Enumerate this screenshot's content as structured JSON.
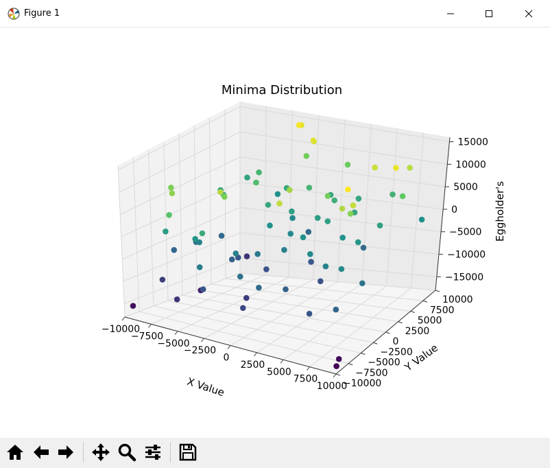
{
  "window": {
    "title": "Figure 1",
    "icons": {
      "app": "matplotlib-logo-icon",
      "minimize": "minimize-icon",
      "maximize": "maximize-icon",
      "close": "close-icon"
    }
  },
  "toolbar": {
    "buttons": [
      {
        "name": "home-button",
        "icon": "home-icon"
      },
      {
        "name": "back-button",
        "icon": "arrow-left-icon"
      },
      {
        "name": "forward-button",
        "icon": "arrow-right-icon"
      },
      {
        "name": "pan-button",
        "icon": "move-icon"
      },
      {
        "name": "zoom-button",
        "icon": "magnifier-icon"
      },
      {
        "name": "configure-subplots-button",
        "icon": "sliders-icon"
      },
      {
        "name": "save-button",
        "icon": "floppy-disk-icon"
      }
    ]
  },
  "chart_data": {
    "type": "scatter",
    "projection": "3d",
    "title": "Minima Distribution",
    "xlabel": "X Value",
    "ylabel": "Y Value",
    "zlabel": "Eggholder's",
    "xlim": [
      -10000,
      10000
    ],
    "ylim": [
      -10000,
      10000
    ],
    "zlim": [
      -18000,
      16000
    ],
    "xticks": [
      "−10000",
      "−7500",
      "−5000",
      "−2500",
      "0",
      "2500",
      "5000",
      "7500",
      "10000"
    ],
    "yticks": [
      "−10000",
      "−7500",
      "−5000",
      "−2500",
      "0",
      "2500",
      "5000",
      "7500",
      "10000"
    ],
    "zticks": [
      "−15000",
      "−10000",
      "−5000",
      "0",
      "5000",
      "10000",
      "15000"
    ],
    "grid": true,
    "colormap": "viridis",
    "colormap_stops": [
      "#440154",
      "#3b528b",
      "#21918c",
      "#5ec962",
      "#fde725"
    ],
    "points": [
      {
        "x": -9500,
        "y": -9400,
        "z": -15500
      },
      {
        "x": -5500,
        "y": -9000,
        "z": -12000
      },
      {
        "x": -8500,
        "y": -6000,
        "z": -11000
      },
      {
        "x": -6500,
        "y": -3000,
        "z": -14000
      },
      {
        "x": -9000,
        "y": -3000,
        "z": -6500
      },
      {
        "x": -3000,
        "y": -9000,
        "z": -8500
      },
      {
        "x": 1000,
        "y": -9500,
        "z": -10000
      },
      {
        "x": 3500,
        "y": -6500,
        "z": -7000
      },
      {
        "x": 7000,
        "y": -9000,
        "z": -8500
      },
      {
        "x": 9500,
        "y": -9000,
        "z": -6500
      },
      {
        "x": -7000,
        "y": 6000,
        "z": -12000
      },
      {
        "x": -4000,
        "y": -2000,
        "z": -7000
      },
      {
        "x": -6000,
        "y": -4000,
        "z": -3000
      },
      {
        "x": -8000,
        "y": -1000,
        "z": -5500
      },
      {
        "x": -2000,
        "y": -5000,
        "z": -3000
      },
      {
        "x": -9000,
        "y": 5000,
        "z": 1500
      },
      {
        "x": -7000,
        "y": 2000,
        "z": 3000
      },
      {
        "x": -7500,
        "y": -7000,
        "z": 500
      },
      {
        "x": -5000,
        "y": -6500,
        "z": -300
      },
      {
        "x": -3500,
        "y": -8000,
        "z": 2500
      },
      {
        "x": -6000,
        "y": -9000,
        "z": 6000
      },
      {
        "x": -3000,
        "y": -9500,
        "z": -3500
      },
      {
        "x": 0,
        "y": -8000,
        "z": -5000
      },
      {
        "x": 2000,
        "y": -8500,
        "z": -6000
      },
      {
        "x": -1000,
        "y": -3000,
        "z": -4000
      },
      {
        "x": 1000,
        "y": -2000,
        "z": -3000
      },
      {
        "x": 4000,
        "y": -3000,
        "z": -2000
      },
      {
        "x": 6000,
        "y": -4000,
        "z": -3000
      },
      {
        "x": 8000,
        "y": -5000,
        "z": -2000
      },
      {
        "x": 9500,
        "y": -4000,
        "z": -5000
      },
      {
        "x": -2000,
        "y": 1000,
        "z": -1000
      },
      {
        "x": 0,
        "y": 1000,
        "z": -2000
      },
      {
        "x": 2000,
        "y": -500,
        "z": -1000
      },
      {
        "x": -3000,
        "y": 2500,
        "z": 2000
      },
      {
        "x": -1000,
        "y": 3000,
        "z": 1000
      },
      {
        "x": 1500,
        "y": 3000,
        "z": 500
      },
      {
        "x": 3000,
        "y": 2000,
        "z": 1000
      },
      {
        "x": 5000,
        "y": 1000,
        "z": -1000
      },
      {
        "x": 7000,
        "y": 0,
        "z": -500
      },
      {
        "x": -5000,
        "y": 4000,
        "z": 5000
      },
      {
        "x": -1000,
        "y": 6000,
        "z": 4000
      },
      {
        "x": 2000,
        "y": 5000,
        "z": 3000
      },
      {
        "x": 4500,
        "y": 4000,
        "z": 2000
      },
      {
        "x": 7500,
        "y": 3000,
        "z": 1000
      },
      {
        "x": -4000,
        "y": 7500,
        "z": 2000
      },
      {
        "x": 0,
        "y": 8000,
        "z": 1500
      },
      {
        "x": 3000,
        "y": 7500,
        "z": 2000
      },
      {
        "x": 6000,
        "y": 8000,
        "z": 3500
      },
      {
        "x": 9000,
        "y": 8000,
        "z": -1000
      },
      {
        "x": 9000,
        "y": 4000,
        "z": 7000
      },
      {
        "x": -7000,
        "y": 8000,
        "z": 4000
      },
      {
        "x": -3000,
        "y": 9000,
        "z": 8000
      },
      {
        "x": 1000,
        "y": 9000,
        "z": 7500
      },
      {
        "x": -2000,
        "y": 5000,
        "z": -2000
      },
      {
        "x": -6000,
        "y": 9500,
        "z": -1000
      },
      {
        "x": -9000,
        "y": 9500,
        "z": 1500
      },
      {
        "x": -7500,
        "y": 2500,
        "z": -6000
      },
      {
        "x": -4500,
        "y": 0,
        "z": -8000
      },
      {
        "x": -1500,
        "y": -500,
        "z": -9000
      },
      {
        "x": 1500,
        "y": 2000,
        "z": -8000
      },
      {
        "x": 5000,
        "y": 5000,
        "z": -6000
      },
      {
        "x": -500,
        "y": -6000,
        "z": -11000
      },
      {
        "x": 4000,
        "y": -1000,
        "z": -9000
      },
      {
        "x": -1500,
        "y": 7000,
        "z": -6000
      },
      {
        "x": -8000,
        "y": -5000,
        "z": 8500
      },
      {
        "x": -6500,
        "y": -7500,
        "z": 9500
      },
      {
        "x": -3000,
        "y": -5000,
        "z": 8500
      },
      {
        "x": -2000,
        "y": -7500,
        "z": 11500
      },
      {
        "x": 4000,
        "y": -8500,
        "z": 12000
      },
      {
        "x": 2000,
        "y": -3000,
        "z": 10500
      },
      {
        "x": 8500,
        "y": -6000,
        "z": 11000
      },
      {
        "x": 8500,
        "y": -4500,
        "z": 9000
      },
      {
        "x": 9000,
        "y": -6000,
        "z": 15000
      },
      {
        "x": 9500,
        "y": -6000,
        "z": 12000
      },
      {
        "x": -1000,
        "y": 6500,
        "z": 13500
      },
      {
        "x": -3500,
        "y": 8500,
        "z": 14500
      },
      {
        "x": -1500,
        "y": 7500,
        "z": 12500
      },
      {
        "x": 6500,
        "y": 3500,
        "z": 12500
      },
      {
        "x": 8500,
        "y": 6000,
        "z": 11500
      },
      {
        "x": 4000,
        "y": 0,
        "z": 8000
      },
      {
        "x": 9000,
        "y": 2500,
        "z": 14000
      },
      {
        "x": -4000,
        "y": 9800,
        "z": 13500
      },
      {
        "x": 9800,
        "y": -9000,
        "z": -16000
      },
      {
        "x": 9800,
        "y": -9500,
        "z": -17000
      }
    ]
  }
}
